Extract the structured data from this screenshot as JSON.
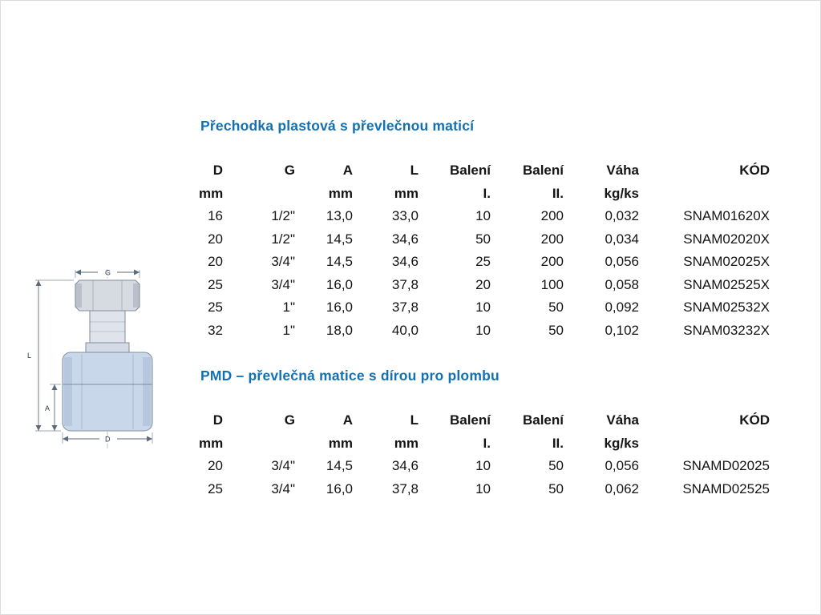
{
  "page": {
    "background": "#ffffff",
    "accent_blue": "#1270b4"
  },
  "diagram": {
    "description": "technical-drawing-of-plastic-adapter-with-union-nut",
    "dimension_labels": {
      "g": "G",
      "l": "L",
      "a": "A",
      "d": "D"
    }
  },
  "tables": [
    {
      "title": "Přechodka plastová s převlečnou maticí",
      "headers": [
        "D",
        "G",
        "A",
        "L",
        "Balení",
        "Balení",
        "Váha",
        "KÓD"
      ],
      "units": [
        "mm",
        "",
        "mm",
        "mm",
        "I.",
        "II.",
        "kg/ks",
        ""
      ],
      "rows": [
        [
          "16",
          "1/2\"",
          "13,0",
          "33,0",
          "10",
          "200",
          "0,032",
          "SNAM01620X"
        ],
        [
          "20",
          "1/2\"",
          "14,5",
          "34,6",
          "50",
          "200",
          "0,034",
          "SNAM02020X"
        ],
        [
          "20",
          "3/4\"",
          "14,5",
          "34,6",
          "25",
          "200",
          "0,056",
          "SNAM02025X"
        ],
        [
          "25",
          "3/4\"",
          "16,0",
          "37,8",
          "20",
          "100",
          "0,058",
          "SNAM02525X"
        ],
        [
          "25",
          "1\"",
          "16,0",
          "37,8",
          "10",
          "50",
          "0,092",
          "SNAM02532X"
        ],
        [
          "32",
          "1\"",
          "18,0",
          "40,0",
          "10",
          "50",
          "0,102",
          "SNAM03232X"
        ]
      ]
    },
    {
      "title": "PMD – převlečná matice s dírou pro plombu",
      "headers": [
        "D",
        "G",
        "A",
        "L",
        "Balení",
        "Balení",
        "Váha",
        "KÓD"
      ],
      "units": [
        "mm",
        "",
        "mm",
        "mm",
        "I.",
        "II.",
        "kg/ks",
        ""
      ],
      "rows": [
        [
          "20",
          "3/4\"",
          "14,5",
          "34,6",
          "10",
          "50",
          "0,056",
          "SNAMD02025"
        ],
        [
          "25",
          "3/4\"",
          "16,0",
          "37,8",
          "10",
          "50",
          "0,062",
          "SNAMD02525"
        ]
      ]
    }
  ]
}
